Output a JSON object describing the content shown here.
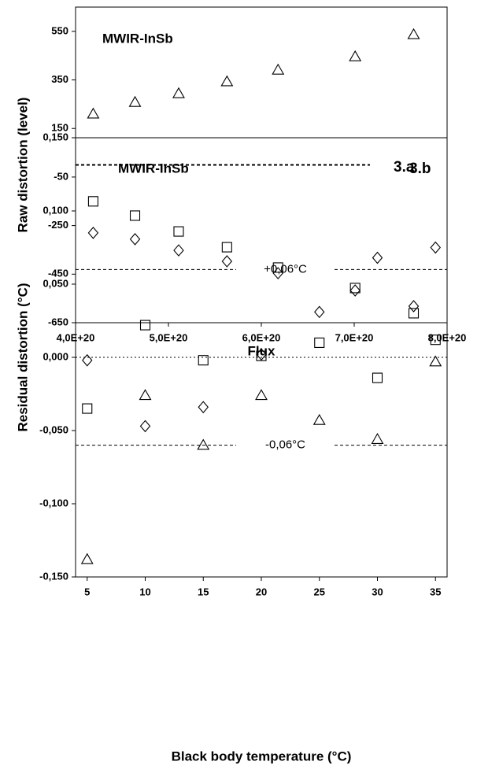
{
  "chart_data": [
    {
      "type": "scatter",
      "x_label": "Flux",
      "y_label": "Raw distortion (level)",
      "annotations": [
        "MWIR-InSb",
        "3.a"
      ],
      "x": [
        4.19e+20,
        4.64e+20,
        5.11e+20,
        5.63e+20,
        6.18e+20,
        7.01e+20,
        7.64e+20
      ],
      "series": [
        {
          "marker": "triangle",
          "color": "#000000",
          "values": [
            210,
            258,
            294,
            343,
            391,
            446,
            537
          ]
        },
        {
          "marker": "square",
          "color": "#000000",
          "values": [
            -150,
            -209,
            -274,
            -339,
            -423,
            -507,
            -611
          ]
        },
        {
          "marker": "diamond",
          "color": "#000000",
          "values": [
            -280,
            -306,
            -352,
            -397,
            -446,
            -517,
            -582
          ]
        }
      ],
      "reference_lines": [
        {
          "y": 0,
          "style": "dashed"
        }
      ],
      "xlim": [
        4e+20,
        8e+20
      ],
      "xticks": [
        {
          "value": 4e+20,
          "label": "4,0E+20"
        },
        {
          "value": 5e+20,
          "label": "5,0E+20"
        },
        {
          "value": 6e+20,
          "label": "6,0E+20"
        },
        {
          "value": 7e+20,
          "label": "7,0E+20"
        },
        {
          "value": 8e+20,
          "label": "8,0E+20"
        }
      ],
      "ylim": [
        -650,
        650
      ],
      "yticks": [
        -650,
        -450,
        -250,
        -50,
        150,
        350,
        550
      ],
      "grid": false
    },
    {
      "type": "scatter",
      "x_label": "Black body temperature (°C)",
      "y_label": "Residual distortion (°C)",
      "annotations": [
        "MWIR-InSb",
        "3.b"
      ],
      "x": [
        5,
        10,
        15,
        20,
        25,
        30,
        35
      ],
      "series": [
        {
          "marker": "diamond",
          "color": "#000000",
          "values": [
            -0.002,
            -0.047,
            -0.034,
            0.002,
            0.031,
            0.068,
            0.075
          ]
        },
        {
          "marker": "square",
          "color": "#000000",
          "values": [
            -0.035,
            0.022,
            -0.002,
            0.001,
            0.01,
            -0.014,
            0.012
          ]
        },
        {
          "marker": "triangle",
          "color": "#000000",
          "values": [
            -0.138,
            -0.026,
            -0.06,
            -0.026,
            -0.043,
            -0.056,
            -0.003
          ]
        }
      ],
      "reference_lines": [
        {
          "y": 0.06,
          "style": "dashed",
          "label": "+0,06°C"
        },
        {
          "y": 0,
          "style": "dotted"
        },
        {
          "y": -0.06,
          "style": "dashed",
          "label": "-0,06°C"
        }
      ],
      "xlim": [
        4,
        36
      ],
      "xticks": [
        5,
        10,
        15,
        20,
        25,
        30,
        35
      ],
      "ylim": [
        -0.15,
        0.15
      ],
      "yticks": [
        {
          "value": -0.15,
          "label": "-0,150"
        },
        {
          "value": -0.1,
          "label": "-0,100"
        },
        {
          "value": -0.05,
          "label": "-0,050"
        },
        {
          "value": 0,
          "label": "0,000"
        },
        {
          "value": 0.05,
          "label": "0,050"
        },
        {
          "value": 0.1,
          "label": "0,100"
        },
        {
          "value": 0.15,
          "label": "0,150"
        }
      ],
      "grid": false
    }
  ]
}
